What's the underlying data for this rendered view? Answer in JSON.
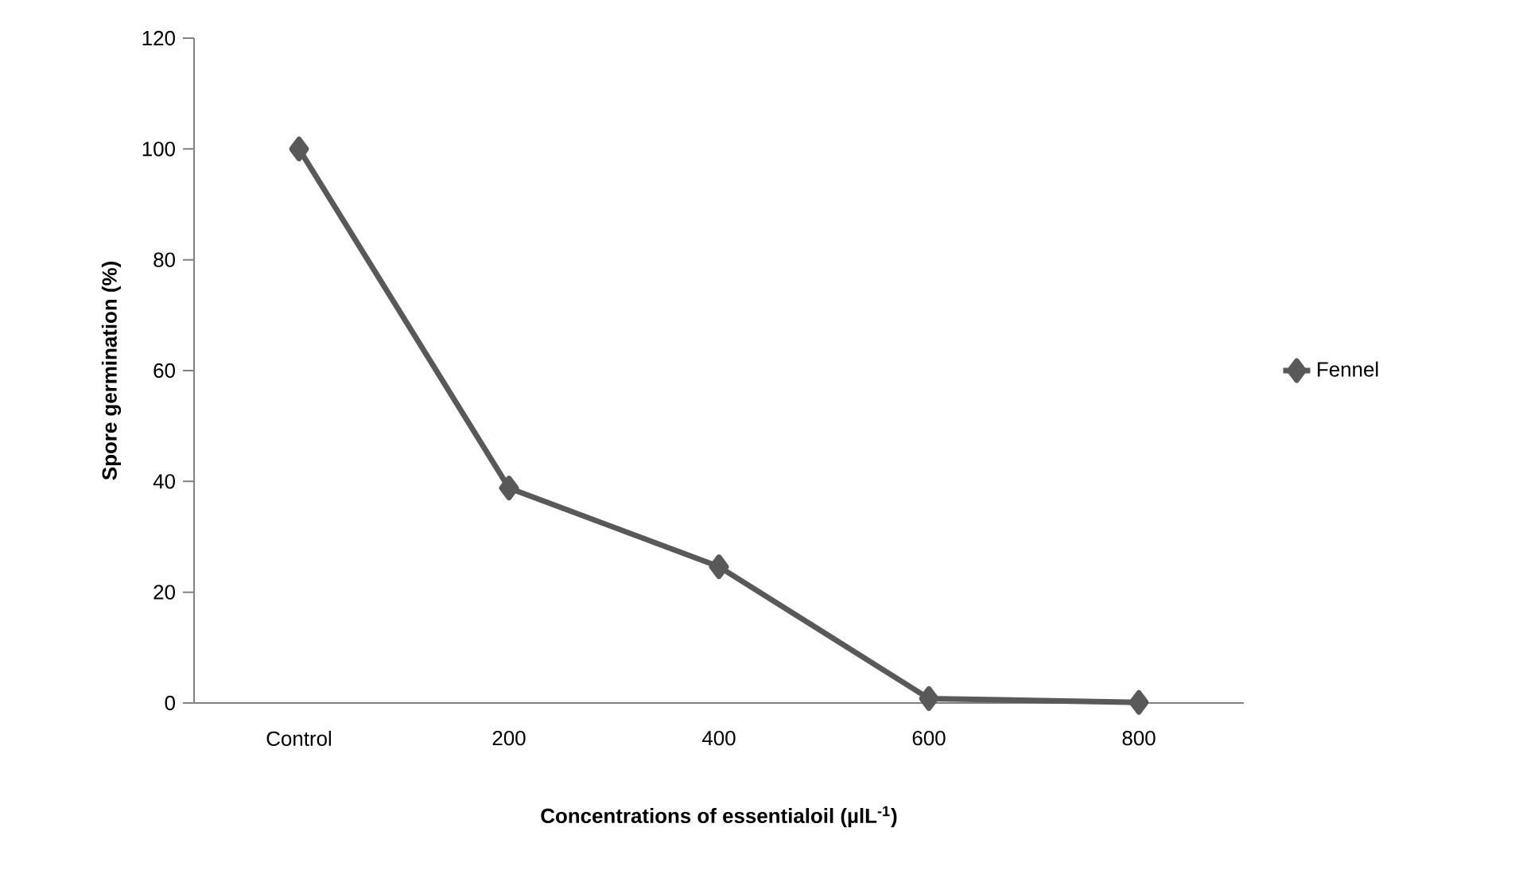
{
  "chart_data": {
    "type": "line",
    "xlabel": "Concentrations of essentialoil (µlL$^{-1}$)",
    "ylabel": "Spore germination (%)",
    "categories": [
      "Control",
      "200",
      "400",
      "600",
      "800"
    ],
    "series": [
      {
        "name": "Fennel",
        "color": "#595959",
        "values": [
          100,
          38.8,
          24.6,
          0.8,
          0.1
        ]
      }
    ],
    "ylim": [
      0,
      120
    ],
    "yticks": [
      0,
      20,
      40,
      60,
      80,
      100,
      120
    ],
    "legend": "right",
    "marker": "diamond",
    "line_style": "solid",
    "grid": false
  }
}
